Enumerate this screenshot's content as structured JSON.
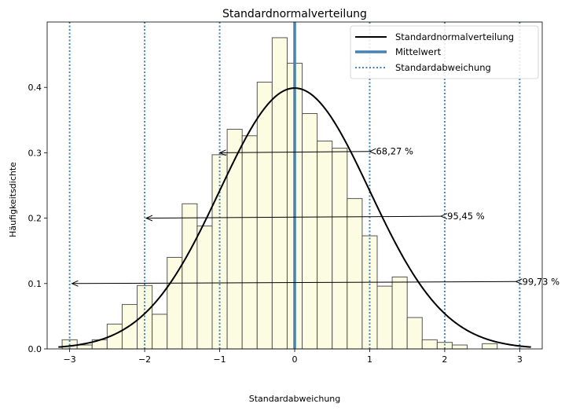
{
  "chart_data": {
    "type": "bar",
    "title": "Standardnormalverteilung",
    "xlabel": "Standardabweichung",
    "ylabel": "Häufigkeitsdichte",
    "xlim": [
      -3.3,
      3.3
    ],
    "ylim": [
      0,
      0.5
    ],
    "xticks": [
      -3,
      -2,
      -1,
      0,
      1,
      2,
      3
    ],
    "xtick_labels": [
      "−3",
      "−2",
      "−1",
      "0",
      "1",
      "2",
      "3"
    ],
    "yticks": [
      0,
      0.1,
      0.2,
      0.3,
      0.4
    ],
    "ytick_labels": [
      "0.0",
      "0.1",
      "0.2",
      "0.3",
      "0.4"
    ],
    "grid": false,
    "legend_position": "top-right",
    "colors": {
      "bar_fill": "#fcfce3",
      "bar_edge": "#555555",
      "curve": "#000000",
      "mean_line": "#4682b4",
      "sd_lines": "#4682b4"
    },
    "histogram": {
      "bin_start": -3.1,
      "bin_width": 0.2,
      "values": [
        0.014,
        0.006,
        0.014,
        0.038,
        0.068,
        0.097,
        0.053,
        0.14,
        0.222,
        0.188,
        0.297,
        0.336,
        0.326,
        0.408,
        0.476,
        0.437,
        0.36,
        0.318,
        0.307,
        0.23,
        0.173,
        0.096,
        0.11,
        0.048,
        0.014,
        0.01,
        0.006,
        0.0,
        0.008
      ]
    },
    "curve": {
      "name": "Standardnormalverteilung",
      "x_range": [
        -3.15,
        3.15
      ],
      "function": "standard-normal-pdf"
    },
    "mean": {
      "name": "Mittelwert",
      "x": 0
    },
    "std_lines": {
      "name": "Standardabweichung",
      "x": [
        -3,
        -2,
        -1,
        1,
        2,
        3
      ]
    },
    "annotations": [
      {
        "text": "68,27 %",
        "x_from": 1,
        "x_to": -1,
        "y_from": 0.302,
        "y_to": 0.3
      },
      {
        "text": "95,45 %",
        "x_from": 1.95,
        "x_to": -1.98,
        "y_from": 0.203,
        "y_to": 0.2
      },
      {
        "text": "99,73 %",
        "x_from": 2.95,
        "x_to": -2.97,
        "y_from": 0.103,
        "y_to": 0.1
      }
    ]
  }
}
